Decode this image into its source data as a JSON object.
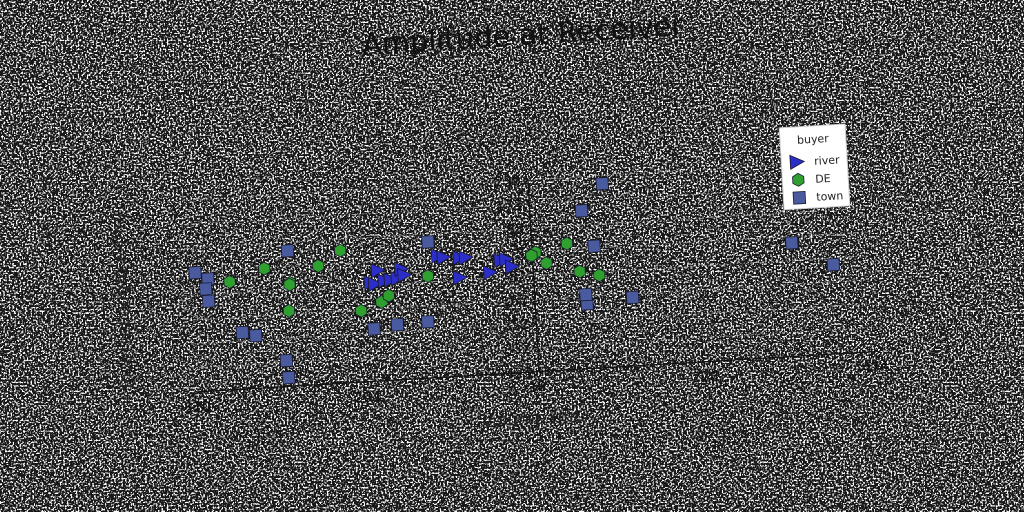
{
  "chart_data": {
    "type": "scatter",
    "title": "Amplitude at Receiver",
    "xlabel": "Volume (mL)",
    "ylabel": "InverseLength (%/in)",
    "xlim": [
      -510,
      474
    ],
    "ylim": [
      -423,
      259
    ],
    "x_ticks": [
      -510,
      -264,
      -18,
      228,
      474
    ],
    "y_ticks": [
      259,
      173,
      88,
      3,
      -82,
      -167,
      -252,
      -337,
      -423
    ],
    "y_grid": true,
    "legend": {
      "title": "buyer",
      "position": "top-right"
    },
    "series": [
      {
        "name": "river",
        "marker": "triangle-right",
        "color": "#2b2fc8",
        "points": [
          {
            "x": -245,
            "y": -72
          },
          {
            "x": -239,
            "y": -78
          },
          {
            "x": -225,
            "y": -68
          },
          {
            "x": -216,
            "y": -66
          },
          {
            "x": -206,
            "y": -62
          },
          {
            "x": -234,
            "y": -30
          },
          {
            "x": -200,
            "y": -30
          },
          {
            "x": -196,
            "y": -52
          },
          {
            "x": -146,
            "y": 9
          },
          {
            "x": -138,
            "y": 2
          },
          {
            "x": -115,
            "y": -2
          },
          {
            "x": -106,
            "y": -3
          },
          {
            "x": -116,
            "y": -73
          },
          {
            "x": -72,
            "y": -61
          },
          {
            "x": -56,
            "y": -20
          },
          {
            "x": -48,
            "y": -18
          },
          {
            "x": -40,
            "y": -45
          }
        ]
      },
      {
        "name": "DE",
        "marker": "hexagon",
        "color": "#2fa02f",
        "points": [
          {
            "x": -449,
            "y": -40
          },
          {
            "x": -398,
            "y": 0
          },
          {
            "x": -362,
            "y": -56
          },
          {
            "x": -363,
            "y": -62
          },
          {
            "x": -366,
            "y": -155
          },
          {
            "x": -320,
            "y": -2
          },
          {
            "x": -287,
            "y": 48
          },
          {
            "x": -262,
            "y": -170
          },
          {
            "x": -232,
            "y": -143
          },
          {
            "x": -221,
            "y": -122
          },
          {
            "x": -163,
            "y": -61
          },
          {
            "x": -6,
            "y": 0
          },
          {
            "x": -12,
            "y": -10
          },
          {
            "x": 9,
            "y": -40
          },
          {
            "x": 40,
            "y": 25
          },
          {
            "x": 56,
            "y": -77
          },
          {
            "x": 84,
            "y": -94
          }
        ]
      },
      {
        "name": "town",
        "marker": "square",
        "color": "#4a5a9e",
        "points": [
          {
            "x": -498,
            "y": 0
          },
          {
            "x": -480,
            "y": -25
          },
          {
            "x": -484,
            "y": -60
          },
          {
            "x": -481,
            "y": -104
          },
          {
            "x": -435,
            "y": -222
          },
          {
            "x": -416,
            "y": -236
          },
          {
            "x": -363,
            "y": 58
          },
          {
            "x": -374,
            "y": -331
          },
          {
            "x": -372,
            "y": -392
          },
          {
            "x": -245,
            "y": -237
          },
          {
            "x": -211,
            "y": -227
          },
          {
            "x": -160,
            "y": 60
          },
          {
            "x": -167,
            "y": -223
          },
          {
            "x": 64,
            "y": 138
          },
          {
            "x": 64,
            "y": -193
          },
          {
            "x": 96,
            "y": 230
          },
          {
            "x": 63,
            "y": -160
          },
          {
            "x": 79,
            "y": 10
          },
          {
            "x": 130,
            "y": -180
          },
          {
            "x": 364,
            "y": -20
          },
          {
            "x": 422,
            "y": -106
          }
        ]
      }
    ]
  }
}
